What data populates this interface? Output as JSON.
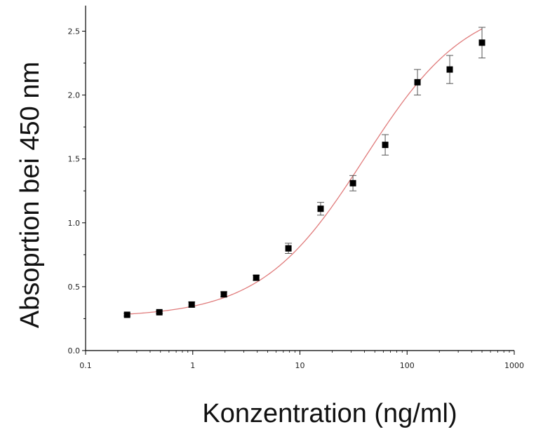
{
  "chart_data": {
    "type": "scatter",
    "xlabel": "Konzentration (ng/ml)",
    "ylabel": "Absoprtion bei 450 nm",
    "x_scale": "log",
    "xlim": [
      0.1,
      1000
    ],
    "ylim": [
      0.0,
      2.7
    ],
    "x_ticks": [
      "0.1",
      "1",
      "10",
      "100",
      "1000"
    ],
    "y_ticks": [
      "0.0",
      "0.5",
      "1.0",
      "1.5",
      "2.0",
      "2.5"
    ],
    "grid": false,
    "fit_curve": true,
    "colors": {
      "points": "#000000",
      "curve": "#e07b7b",
      "error_bars": "#555555",
      "axes": "#000000"
    },
    "series": [
      {
        "x": [
          0.244,
          0.488,
          0.977,
          1.95,
          3.91,
          7.81,
          15.6,
          31.25,
          62.5,
          125,
          250,
          500
        ],
        "y": [
          0.28,
          0.3,
          0.36,
          0.44,
          0.57,
          0.8,
          1.11,
          1.31,
          1.61,
          2.1,
          2.2,
          2.41
        ],
        "error": [
          0.01,
          0.01,
          0.02,
          0.02,
          0.02,
          0.04,
          0.05,
          0.06,
          0.08,
          0.1,
          0.11,
          0.12
        ]
      }
    ]
  }
}
